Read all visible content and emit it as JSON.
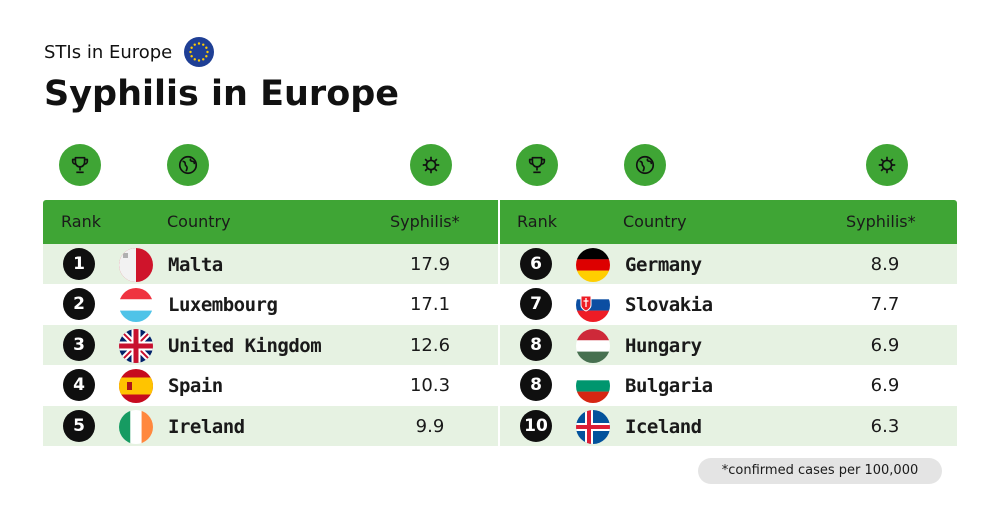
{
  "header": {
    "subtitle": "STIs in Europe",
    "title": "Syphilis in Europe"
  },
  "colors": {
    "accent_green": "#3fa535",
    "row_shade": "#e6f2e2",
    "rank_circle": "#0f0f0f"
  },
  "icons": [
    "trophy-icon",
    "globe-icon",
    "virus-icon"
  ],
  "chart_data": {
    "type": "table",
    "columns": [
      "Rank",
      "Country",
      "Syphilis*"
    ],
    "rows": [
      {
        "rank": "1",
        "country": "Malta",
        "flag": "malta-flag-icon",
        "value": "17.9"
      },
      {
        "rank": "2",
        "country": "Luxembourg",
        "flag": "luxembourg-flag-icon",
        "value": "17.1"
      },
      {
        "rank": "3",
        "country": "United Kingdom",
        "flag": "uk-flag-icon",
        "value": "12.6"
      },
      {
        "rank": "4",
        "country": "Spain",
        "flag": "spain-flag-icon",
        "value": "10.3"
      },
      {
        "rank": "5",
        "country": "Ireland",
        "flag": "ireland-flag-icon",
        "value": "9.9"
      },
      {
        "rank": "6",
        "country": "Germany",
        "flag": "germany-flag-icon",
        "value": "8.9"
      },
      {
        "rank": "7",
        "country": "Slovakia",
        "flag": "slovakia-flag-icon",
        "value": "7.7"
      },
      {
        "rank": "8",
        "country": "Hungary",
        "flag": "hungary-flag-icon",
        "value": "6.9"
      },
      {
        "rank": "8",
        "country": "Bulgaria",
        "flag": "bulgaria-flag-icon",
        "value": "6.9"
      },
      {
        "rank": "10",
        "country": "Iceland",
        "flag": "iceland-flag-icon",
        "value": "6.3"
      }
    ]
  },
  "footnote": "*confirmed cases per 100,000"
}
